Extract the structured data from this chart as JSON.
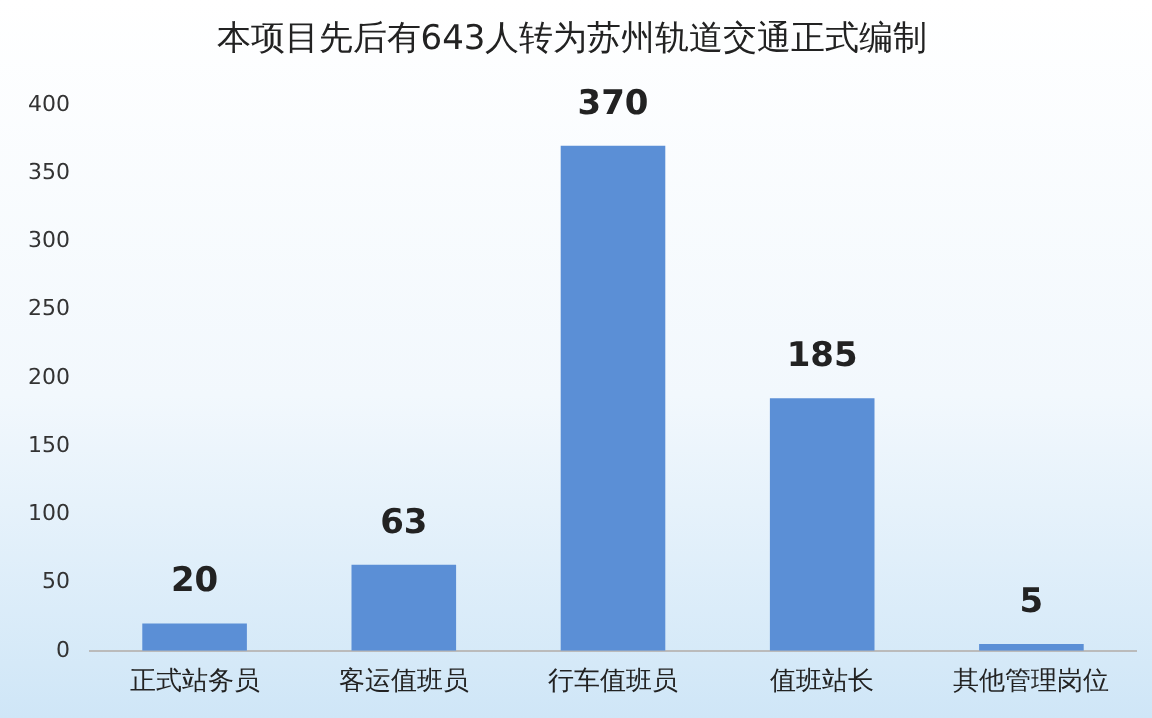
{
  "chart_data": {
    "type": "bar",
    "title": "本项目先后有643人转为苏州轨道交通正式编制",
    "categories": [
      "正式站务员",
      "客运值班员",
      "行车值班员",
      "值班站长",
      "其他管理岗位"
    ],
    "values": [
      20,
      63,
      370,
      185,
      5
    ],
    "color": "#5b8fd6",
    "ylim": [
      0,
      400
    ],
    "yticks": [
      0,
      50,
      100,
      150,
      200,
      250,
      300,
      350,
      400
    ],
    "grid": false,
    "data_labels": true
  }
}
